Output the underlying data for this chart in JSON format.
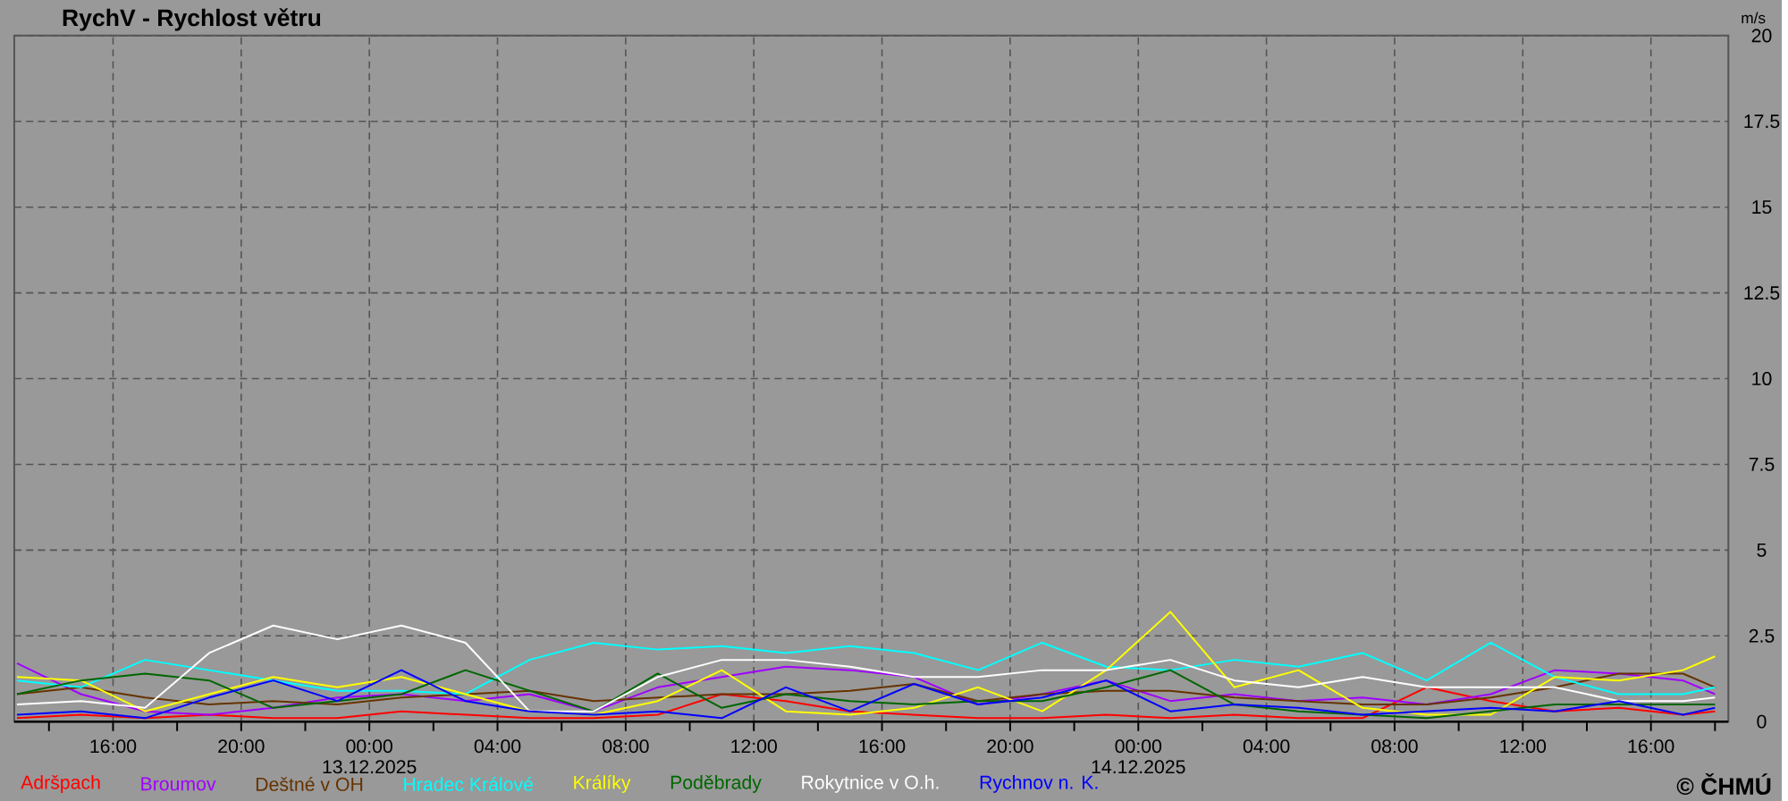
{
  "chart_data": {
    "type": "line",
    "title": "RychV - Rychlost větru",
    "ylabel": "m/s",
    "x": [
      "2025-12-12T13:00",
      "2025-12-12T15:00",
      "2025-12-12T17:00",
      "2025-12-12T19:00",
      "2025-12-12T21:00",
      "2025-12-12T23:00",
      "2025-12-13T01:00",
      "2025-12-13T03:00",
      "2025-12-13T05:00",
      "2025-12-13T07:00",
      "2025-12-13T09:00",
      "2025-12-13T11:00",
      "2025-12-13T13:00",
      "2025-12-13T15:00",
      "2025-12-13T17:00",
      "2025-12-13T19:00",
      "2025-12-13T21:00",
      "2025-12-13T23:00",
      "2025-12-14T01:00",
      "2025-12-14T03:00",
      "2025-12-14T05:00",
      "2025-12-14T07:00",
      "2025-12-14T09:00",
      "2025-12-14T11:00",
      "2025-12-14T13:00",
      "2025-12-14T15:00",
      "2025-12-14T17:00",
      "2025-12-14T18:00"
    ],
    "series": [
      {
        "name": "Adršpach",
        "color": "#ff0000",
        "values": [
          0.1,
          0.2,
          0.1,
          0.2,
          0.1,
          0.1,
          0.3,
          0.2,
          0.1,
          0.1,
          0.2,
          0.8,
          0.6,
          0.3,
          0.2,
          0.1,
          0.1,
          0.2,
          0.1,
          0.2,
          0.1,
          0.1,
          1.0,
          0.6,
          0.3,
          0.4,
          0.2,
          0.3
        ]
      },
      {
        "name": "Broumov",
        "color": "#a000ff",
        "values": [
          1.7,
          0.8,
          0.3,
          0.2,
          0.4,
          0.7,
          0.8,
          0.6,
          0.8,
          0.3,
          1.0,
          1.3,
          1.6,
          1.5,
          1.3,
          0.5,
          0.8,
          1.2,
          0.6,
          0.8,
          0.6,
          0.7,
          0.5,
          0.8,
          1.5,
          1.4,
          1.2,
          0.8
        ]
      },
      {
        "name": "Deštné v OH",
        "color": "#663300",
        "values": [
          0.8,
          1.0,
          0.7,
          0.5,
          0.6,
          0.5,
          0.7,
          0.8,
          0.9,
          0.6,
          0.7,
          0.8,
          0.8,
          0.9,
          1.1,
          0.6,
          0.8,
          0.9,
          0.9,
          0.7,
          0.6,
          0.5,
          0.5,
          0.7,
          1.0,
          1.4,
          1.4,
          1.0
        ]
      },
      {
        "name": "Hradec Králové",
        "color": "#00ffff",
        "values": [
          1.2,
          1.0,
          1.8,
          1.5,
          1.2,
          0.9,
          0.9,
          0.8,
          1.8,
          2.3,
          2.1,
          2.2,
          2.0,
          2.2,
          2.0,
          1.5,
          2.3,
          1.6,
          1.5,
          1.8,
          1.6,
          2.0,
          1.2,
          2.3,
          1.3,
          0.8,
          0.8,
          1.0
        ]
      },
      {
        "name": "Králíky",
        "color": "#ffff00",
        "values": [
          1.3,
          1.2,
          0.3,
          0.8,
          1.3,
          1.0,
          1.3,
          0.8,
          0.3,
          0.2,
          0.6,
          1.5,
          0.3,
          0.2,
          0.4,
          1.0,
          0.3,
          1.5,
          3.2,
          1.0,
          1.5,
          0.4,
          0.2,
          0.2,
          1.3,
          1.2,
          1.5,
          1.9
        ]
      },
      {
        "name": "Poděbrady",
        "color": "#006600",
        "values": [
          0.8,
          1.2,
          1.4,
          1.2,
          0.4,
          0.6,
          0.8,
          1.5,
          0.9,
          0.3,
          1.4,
          0.4,
          0.8,
          0.6,
          0.5,
          0.6,
          0.6,
          1.0,
          1.5,
          0.5,
          0.3,
          0.2,
          0.1,
          0.3,
          0.5,
          0.5,
          0.5,
          0.5
        ]
      },
      {
        "name": "Rokytnice v O.h.",
        "color": "#ffffff",
        "values": [
          0.5,
          0.6,
          0.4,
          2.0,
          2.8,
          2.4,
          2.8,
          2.3,
          0.3,
          0.3,
          1.3,
          1.8,
          1.8,
          1.6,
          1.3,
          1.3,
          1.5,
          1.5,
          1.8,
          1.2,
          1.0,
          1.3,
          1.0,
          1.0,
          1.0,
          0.6,
          0.6,
          0.7
        ]
      },
      {
        "name": "Rychnov n. K.",
        "color": "#0000ff",
        "values": [
          0.2,
          0.3,
          0.1,
          0.7,
          1.2,
          0.6,
          1.5,
          0.6,
          0.3,
          0.2,
          0.3,
          0.1,
          1.0,
          0.3,
          1.1,
          0.5,
          0.7,
          1.2,
          0.3,
          0.5,
          0.4,
          0.2,
          0.3,
          0.4,
          0.3,
          0.6,
          0.2,
          0.4
        ]
      }
    ],
    "xlim": [
      "2025-12-12T12:55",
      "2025-12-14T18:25"
    ],
    "xticks": [
      {
        "value": "2025-12-12T14:00",
        "label": null
      },
      {
        "value": "2025-12-12T16:00",
        "label": "16:00"
      },
      {
        "value": "2025-12-12T18:00",
        "label": null
      },
      {
        "value": "2025-12-12T20:00",
        "label": "20:00"
      },
      {
        "value": "2025-12-12T22:00",
        "label": null
      },
      {
        "value": "2025-12-13T00:00",
        "label": "00:00"
      },
      {
        "value": "2025-12-13T02:00",
        "label": null
      },
      {
        "value": "2025-12-13T04:00",
        "label": "04:00"
      },
      {
        "value": "2025-12-13T06:00",
        "label": null
      },
      {
        "value": "2025-12-13T08:00",
        "label": "08:00"
      },
      {
        "value": "2025-12-13T10:00",
        "label": null
      },
      {
        "value": "2025-12-13T12:00",
        "label": "12:00"
      },
      {
        "value": "2025-12-13T14:00",
        "label": null
      },
      {
        "value": "2025-12-13T16:00",
        "label": "16:00"
      },
      {
        "value": "2025-12-13T18:00",
        "label": null
      },
      {
        "value": "2025-12-13T20:00",
        "label": "20:00"
      },
      {
        "value": "2025-12-13T22:00",
        "label": null
      },
      {
        "value": "2025-12-14T00:00",
        "label": "00:00"
      },
      {
        "value": "2025-12-14T02:00",
        "label": null
      },
      {
        "value": "2025-12-14T04:00",
        "label": "04:00"
      },
      {
        "value": "2025-12-14T06:00",
        "label": null
      },
      {
        "value": "2025-12-14T08:00",
        "label": "08:00"
      },
      {
        "value": "2025-12-14T10:00",
        "label": null
      },
      {
        "value": "2025-12-14T12:00",
        "label": "12:00"
      },
      {
        "value": "2025-12-14T14:00",
        "label": null
      },
      {
        "value": "2025-12-14T16:00",
        "label": "16:00"
      },
      {
        "value": "2025-12-14T18:00",
        "label": null
      }
    ],
    "ylim": [
      0,
      20
    ],
    "yticks": [
      0,
      2.5,
      5,
      7.5,
      10,
      12.5,
      15,
      17.5,
      20
    ],
    "grid": true,
    "legend": "bottom",
    "annotations": [
      "13.12.2025",
      "14.12.2025",
      "© ČHMÚ"
    ]
  }
}
